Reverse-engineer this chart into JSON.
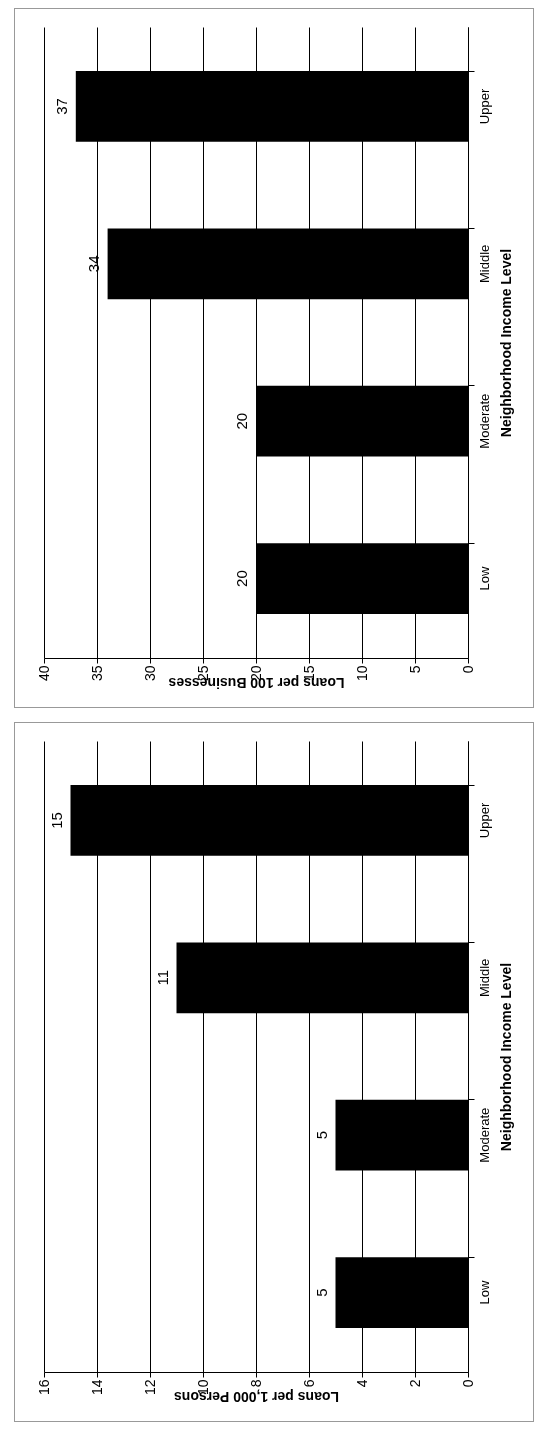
{
  "chart_data": [
    {
      "type": "bar",
      "orientation": "horizontal",
      "categories": [
        "Upper",
        "Middle",
        "Moderate",
        "Low"
      ],
      "values": [
        37,
        34,
        20,
        20
      ],
      "color": "#000000",
      "xlabel": "Loans per 100 Businesses",
      "ylabel": "Neighborhood Income Level",
      "xlim": [
        40,
        0
      ],
      "xticks": [
        40,
        35,
        30,
        25,
        20,
        15,
        10,
        5,
        0
      ],
      "grid": "x",
      "data_labels": true
    },
    {
      "type": "bar",
      "orientation": "horizontal",
      "categories": [
        "Upper",
        "Middle",
        "Moderate",
        "Low"
      ],
      "values": [
        15,
        11,
        5,
        5
      ],
      "color": "#000000",
      "xlabel": "Loans per 1,000 Persons",
      "ylabel": "Neighborhood Income Level",
      "xlim": [
        16,
        0
      ],
      "xticks": [
        16,
        14,
        12,
        10,
        8,
        6,
        4,
        2,
        0
      ],
      "grid": "x",
      "data_labels": true
    }
  ]
}
